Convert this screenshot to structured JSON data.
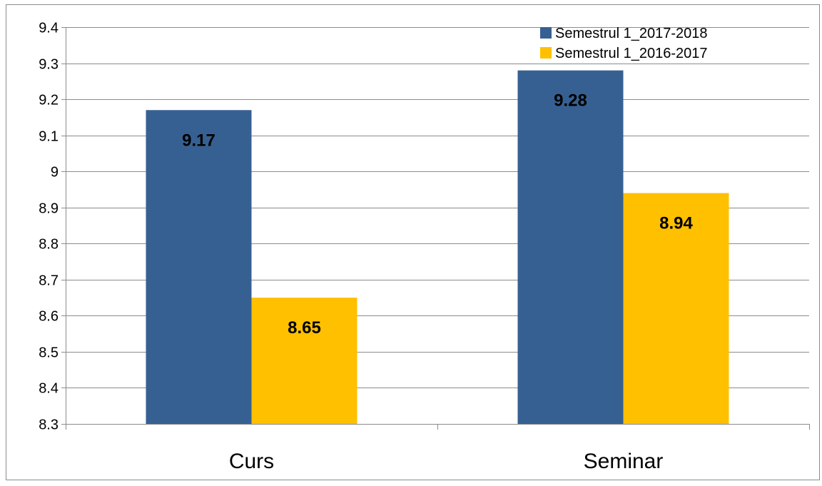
{
  "chart_data": {
    "type": "bar",
    "categories": [
      "Curs",
      "Seminar"
    ],
    "series": [
      {
        "name": "Semestrul 1_2017-2018",
        "values": [
          9.17,
          9.28
        ],
        "color": "#376092"
      },
      {
        "name": "Semestrul 1_2016-2017",
        "values": [
          8.65,
          8.94
        ],
        "color": "#FFC000"
      }
    ],
    "ylim": [
      8.3,
      9.4
    ],
    "yticks": [
      8.3,
      8.4,
      8.5,
      8.6,
      8.7,
      8.8,
      8.9,
      9,
      9.1,
      9.2,
      9.3,
      9.4
    ],
    "title": "",
    "xlabel": "",
    "ylabel": "",
    "grid": true,
    "legend": "top-right",
    "data_labels": true
  }
}
